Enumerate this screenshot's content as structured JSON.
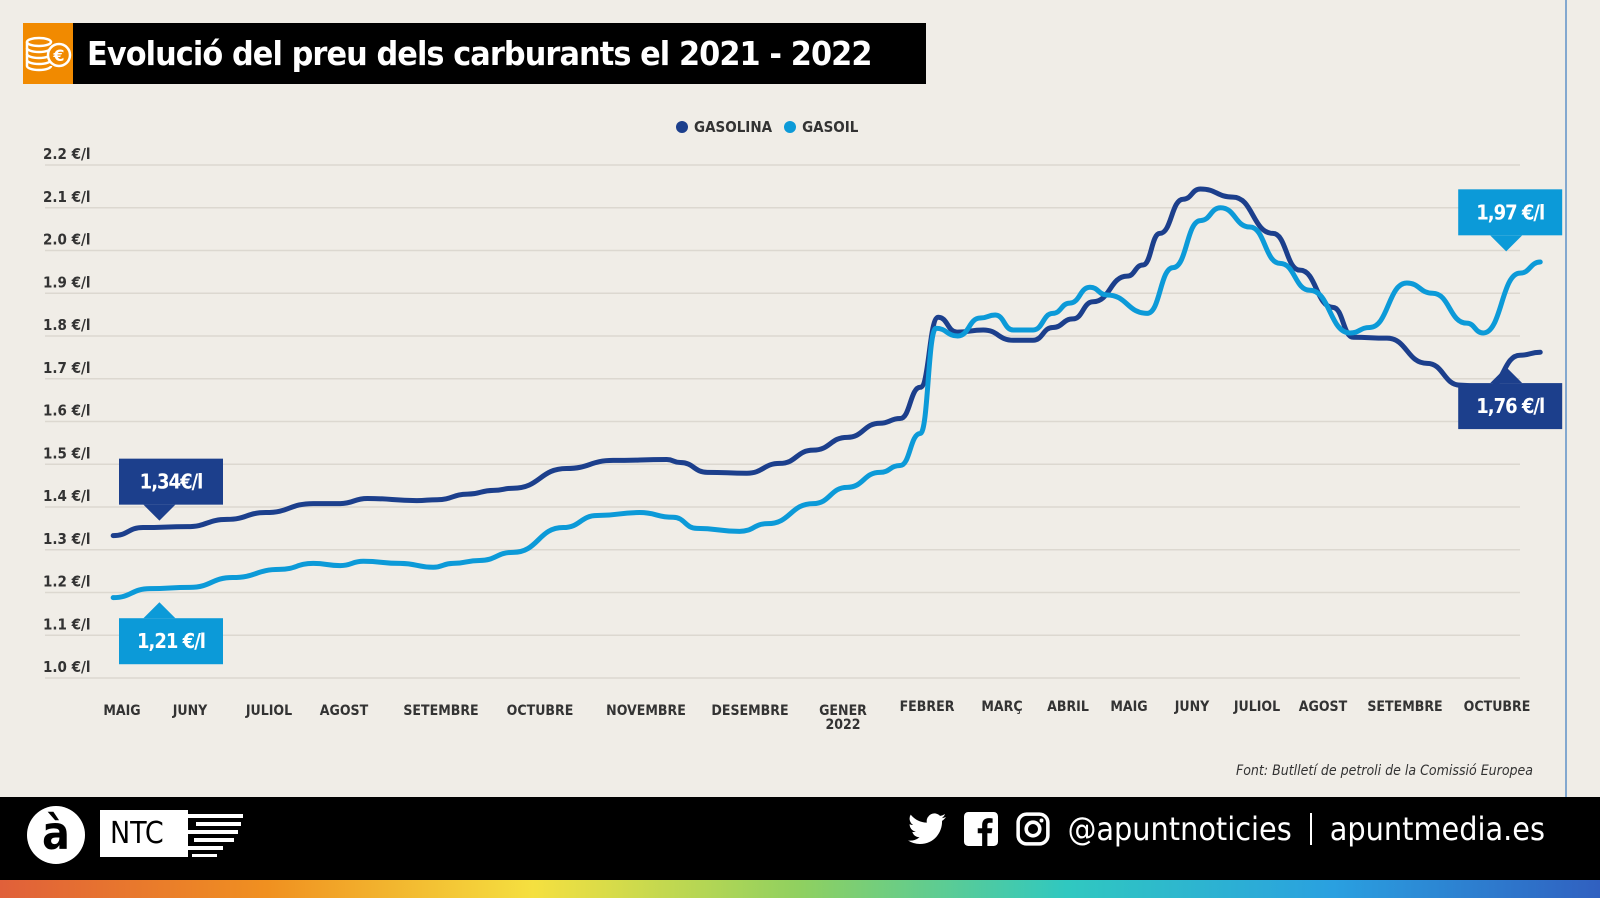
{
  "title": "Evolució del preu dels carburants el 2021 - 2022",
  "title_icon": "coins-euro-icon",
  "source": "Font: Butlletí de petroli de la Comissió Europea",
  "footer": {
    "logo_letter": "à",
    "logo_text": "NTC",
    "social_icons": [
      "twitter-icon",
      "facebook-icon",
      "instagram-icon"
    ],
    "handle": "@apuntnoticies",
    "website": "apuntmedia.es"
  },
  "colors": {
    "gasolina": "#1c3f8c",
    "gasoil": "#0c9ad8",
    "background": "#f0ede7",
    "accent": "#f18a00"
  },
  "chart_data": {
    "type": "line",
    "title": "Evolució del preu dels carburants el 2021 - 2022",
    "legend": [
      "GASOLINA",
      "GASOIL"
    ],
    "legend_position": "top-center",
    "grid": true,
    "ylim": [
      1.0,
      2.2
    ],
    "yticks": [
      2.2,
      2.1,
      2.0,
      1.9,
      1.8,
      1.7,
      1.6,
      1.5,
      1.4,
      1.3,
      1.2,
      1.1,
      1.0
    ],
    "ytick_labels": [
      "2.2 €/l",
      "2.1 €/l",
      "2.0 €/l",
      "1.9 €/l",
      "1.8 €/l",
      "1.7 €/l",
      "1.6 €/l",
      "1.5 €/l",
      "1.4 €/l",
      "1.3 €/l",
      "1.2 €/l",
      "1.1 €/l",
      "1.0 €/l"
    ],
    "categories": [
      {
        "label": "MAIG"
      },
      {
        "label": "JUNY"
      },
      {
        "label": "JULIOL"
      },
      {
        "label": "AGOST"
      },
      {
        "label": "SETEMBRE"
      },
      {
        "label": "OCTUBRE"
      },
      {
        "label": "NOVEMBRE"
      },
      {
        "label": "DESEMBRE"
      },
      {
        "label": "GENER",
        "sub": "2022"
      },
      {
        "label": "FEBRER"
      },
      {
        "label": "MARÇ"
      },
      {
        "label": "ABRIL"
      },
      {
        "label": "MAIG"
      },
      {
        "label": "JUNY"
      },
      {
        "label": "JULIOL"
      },
      {
        "label": "AGOST"
      },
      {
        "label": "SETEMBRE"
      },
      {
        "label": "OCTUBRE"
      }
    ],
    "x_unit": "month index (0 = MAIG 2021)",
    "series": [
      {
        "name": "GASOLINA",
        "color": "#1c3f8c",
        "x": [
          -0.13,
          0.31,
          0.96,
          1.47,
          1.96,
          2.59,
          2.95,
          3.24,
          3.75,
          3.96,
          4.27,
          4.53,
          4.73,
          5.25,
          5.69,
          6.2,
          6.33,
          6.59,
          6.97,
          7.32,
          7.68,
          8.05,
          8.44,
          8.68,
          8.92,
          9.15,
          9.4,
          9.75,
          10.17,
          10.47,
          10.77,
          11.08,
          11.41,
          11.97,
          12.22,
          12.49,
          12.86,
          13.13,
          13.63,
          14.24,
          14.65,
          15.12,
          15.37,
          15.78,
          16.24,
          16.6,
          16.89,
          17.25,
          17.47
        ],
        "y": [
          1.333,
          1.352,
          1.354,
          1.371,
          1.387,
          1.408,
          1.408,
          1.42,
          1.415,
          1.417,
          1.43,
          1.439,
          1.444,
          1.49,
          1.509,
          1.511,
          1.504,
          1.481,
          1.479,
          1.502,
          1.533,
          1.563,
          1.596,
          1.607,
          1.68,
          1.844,
          1.809,
          1.814,
          1.79,
          1.79,
          1.82,
          1.84,
          1.88,
          1.94,
          1.966,
          2.04,
          2.12,
          2.144,
          2.125,
          2.04,
          1.954,
          1.867,
          1.797,
          1.795,
          1.736,
          1.685,
          1.678,
          1.755,
          1.762
        ],
        "annotations": [
          {
            "text": "1,34€/l",
            "at_x": 0.55,
            "value": 1.34,
            "side": "above"
          },
          {
            "text": "1,76 €/l",
            "at_x": 17.1,
            "value": 1.76,
            "side": "below"
          }
        ]
      },
      {
        "name": "GASOIL",
        "color": "#0c9ad8",
        "x": [
          -0.13,
          0.41,
          1.0,
          1.54,
          2.14,
          2.59,
          2.95,
          3.2,
          3.58,
          3.92,
          4.12,
          4.39,
          4.73,
          5.22,
          5.54,
          5.94,
          6.26,
          6.49,
          6.9,
          7.19,
          7.68,
          8.05,
          8.44,
          8.68,
          8.92,
          9.12,
          9.41,
          9.71,
          9.91,
          10.17,
          10.47,
          10.77,
          11.03,
          11.36,
          11.64,
          12.29,
          12.7,
          13.13,
          13.44,
          13.89,
          14.35,
          14.8,
          15.33,
          15.57,
          16.02,
          16.3,
          16.67,
          16.85,
          17.25,
          17.47
        ],
        "y": [
          1.188,
          1.209,
          1.212,
          1.235,
          1.254,
          1.268,
          1.263,
          1.273,
          1.268,
          1.259,
          1.268,
          1.275,
          1.294,
          1.352,
          1.38,
          1.387,
          1.376,
          1.35,
          1.343,
          1.361,
          1.408,
          1.446,
          1.481,
          1.497,
          1.572,
          1.818,
          1.8,
          1.842,
          1.849,
          1.814,
          1.814,
          1.853,
          1.877,
          1.914,
          1.896,
          1.853,
          1.96,
          2.07,
          2.1,
          2.055,
          1.97,
          1.907,
          1.807,
          1.82,
          1.924,
          1.9,
          1.83,
          1.807,
          1.947,
          1.973
        ],
        "annotations": [
          {
            "text": "1,21 €/l",
            "at_x": 0.55,
            "value": 1.21,
            "side": "below"
          },
          {
            "text": "1,97 €/l",
            "at_x": 17.1,
            "value": 1.97,
            "side": "above"
          }
        ]
      }
    ]
  }
}
